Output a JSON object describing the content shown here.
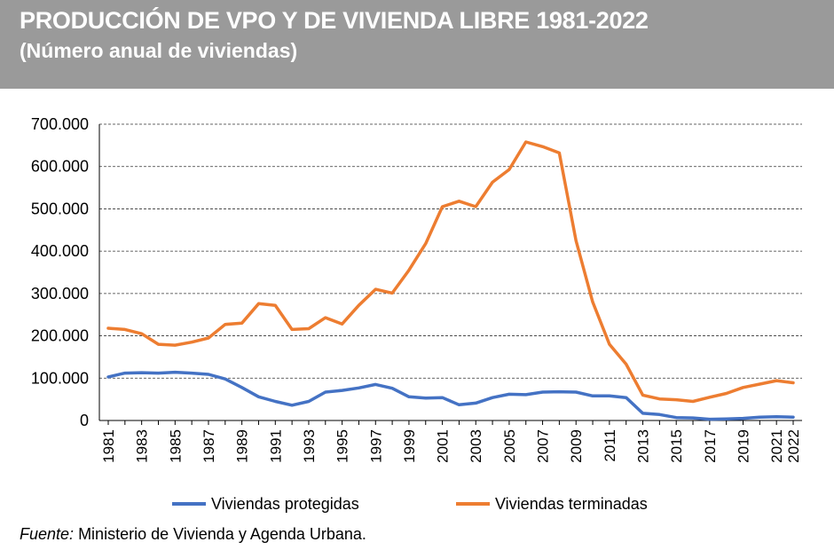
{
  "header": {
    "title": "PRODUCCIÓN DE VPO Y DE VIVIENDA LIBRE 1981-2022",
    "subtitle": "(Número anual de viviendas)"
  },
  "source": {
    "label": "Fuente:",
    "text": "Ministerio de Vivienda y Agenda Urbana."
  },
  "chart_data": {
    "type": "line",
    "title": "PRODUCCIÓN DE VPO Y DE VIVIENDA LIBRE 1981-2022",
    "subtitle": "(Número anual de viviendas)",
    "xlabel": "",
    "ylabel": "",
    "ylim": [
      0,
      700000
    ],
    "yticks": [
      0,
      100000,
      200000,
      300000,
      400000,
      500000,
      600000,
      700000
    ],
    "ytick_labels": [
      "0",
      "100.000",
      "200.000",
      "300.000",
      "400.000",
      "500.000",
      "600.000",
      "700.000"
    ],
    "x": [
      1981,
      1982,
      1983,
      1984,
      1985,
      1986,
      1987,
      1988,
      1989,
      1990,
      1991,
      1992,
      1993,
      1994,
      1995,
      1996,
      1997,
      1998,
      1999,
      2000,
      2001,
      2002,
      2003,
      2004,
      2005,
      2006,
      2007,
      2008,
      2009,
      2010,
      2011,
      2012,
      2013,
      2014,
      2015,
      2016,
      2017,
      2018,
      2019,
      2020,
      2021,
      2022
    ],
    "xtick_labels": [
      "1981",
      "1983",
      "1985",
      "1987",
      "1989",
      "1991",
      "1993",
      "1995",
      "1997",
      "1999",
      "2001",
      "2003",
      "2005",
      "2007",
      "2009",
      "2011",
      "2013",
      "2015",
      "2017",
      "2019",
      "2021",
      "2022"
    ],
    "grid": "horizontal dashed",
    "legend_position": "bottom",
    "series": [
      {
        "name": "Viviendas protegidas",
        "color": "#4472C4",
        "values": [
          103000,
          112000,
          113000,
          112000,
          114000,
          112000,
          109000,
          98000,
          78000,
          56000,
          45000,
          36000,
          45000,
          67000,
          71000,
          77000,
          85000,
          76000,
          56000,
          53000,
          54000,
          37000,
          41000,
          54000,
          62000,
          61000,
          67000,
          68000,
          67000,
          58000,
          58000,
          54000,
          17000,
          14000,
          7000,
          6000,
          3000,
          3500,
          5000,
          8000,
          9000,
          8000
        ]
      },
      {
        "name": "Viviendas terminadas",
        "color": "#ED7D31",
        "values": [
          218000,
          215000,
          205000,
          180000,
          178000,
          185000,
          195000,
          227000,
          230000,
          276000,
          272000,
          215000,
          217000,
          243000,
          228000,
          272000,
          310000,
          301000,
          355000,
          418000,
          505000,
          518000,
          505000,
          563000,
          593000,
          658000,
          647000,
          632000,
          425000,
          280000,
          180000,
          133000,
          60000,
          51000,
          49000,
          45000,
          55000,
          64000,
          78000,
          86000,
          94000,
          89000
        ]
      }
    ]
  }
}
